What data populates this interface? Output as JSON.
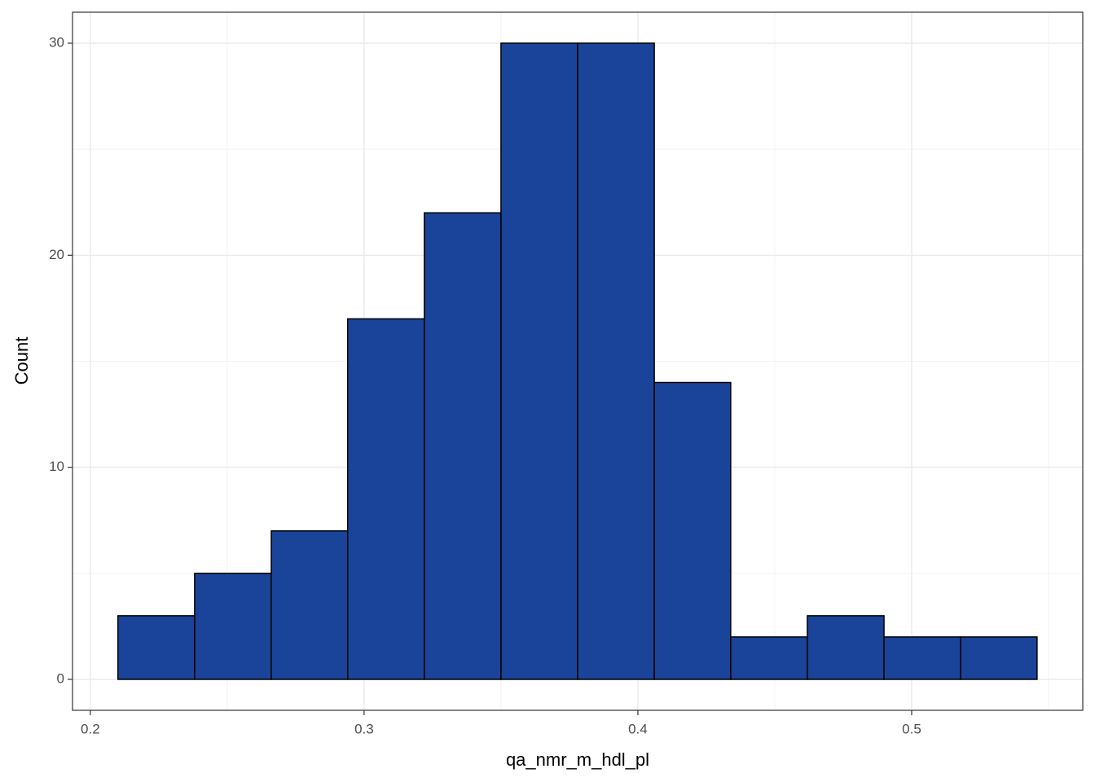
{
  "chart_data": {
    "type": "histogram",
    "x_label": "qa_nmr_m_hdl_pl",
    "y_label": "Count",
    "bins": [
      0.2101,
      0.2381,
      0.2661,
      0.294,
      0.322,
      0.35,
      0.378,
      0.406,
      0.4339,
      0.4619,
      0.4899,
      0.5179,
      0.5458
    ],
    "values": [
      3,
      5,
      7,
      17,
      22,
      30,
      30,
      14,
      2,
      3,
      2,
      2
    ],
    "color": "#1a4499",
    "edge_color": "#000000",
    "xlim": [
      0.1935,
      0.5625
    ],
    "ylim": [
      -1.46,
      31.46
    ],
    "xticks": [
      {
        "value": 0.2,
        "label": "0.2"
      },
      {
        "value": 0.3,
        "label": "0.3"
      },
      {
        "value": 0.4,
        "label": "0.4"
      },
      {
        "value": 0.5,
        "label": "0.5"
      }
    ],
    "yticks": [
      0,
      10,
      20,
      30
    ],
    "grid": true
  }
}
